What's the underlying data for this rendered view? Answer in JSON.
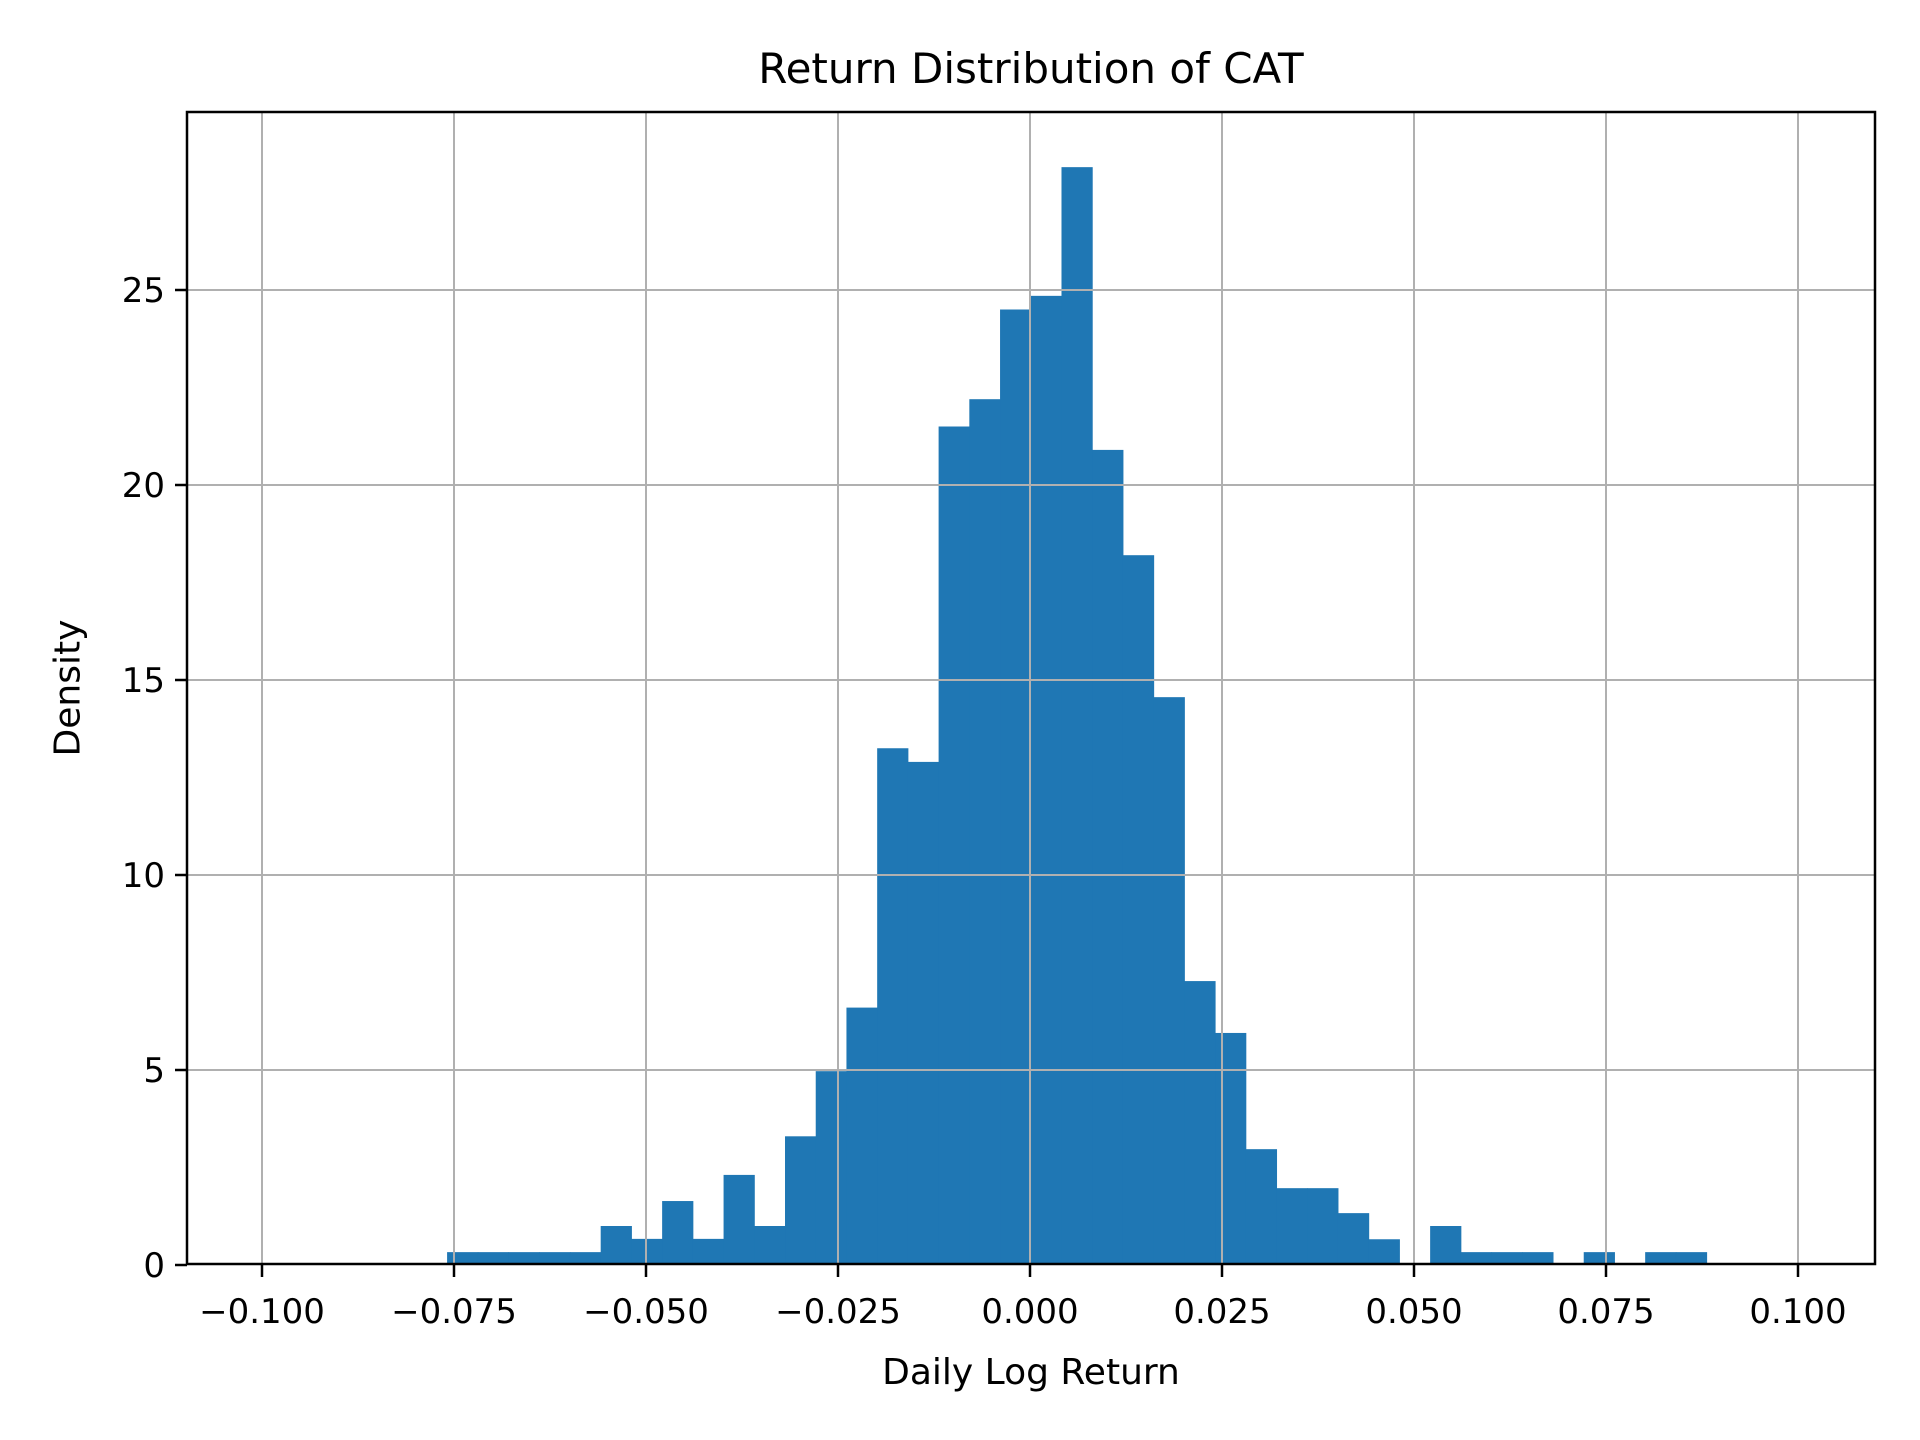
{
  "chart_data": {
    "type": "bar",
    "title": "Return Distribution of CAT",
    "xlabel": "Daily Log Return",
    "ylabel": "Density",
    "xlim": [
      -0.11,
      0.11
    ],
    "ylim": [
      0,
      29.6
    ],
    "grid": true,
    "bar_color": "#1f77b4",
    "grid_color": "#b0b0b0",
    "xticks": [
      -0.1,
      -0.075,
      -0.05,
      -0.025,
      0.0,
      0.025,
      0.05,
      0.075,
      0.1
    ],
    "xtick_labels": [
      "−0.100",
      "−0.075",
      "−0.050",
      "−0.025",
      "0.000",
      "0.025",
      "0.050",
      "0.075",
      "0.100"
    ],
    "yticks": [
      0,
      5,
      10,
      15,
      20,
      25
    ],
    "ytick_labels": [
      "0",
      "5",
      "10",
      "15",
      "20",
      "25"
    ],
    "bin_start": -0.0759,
    "bin_width": 0.004,
    "bin_edges_range": [
      -0.0759,
      0.088
    ],
    "values": [
      0.33,
      0.33,
      0.33,
      0.33,
      0.33,
      1.0,
      0.67,
      1.64,
      0.67,
      2.31,
      1.0,
      3.3,
      4.97,
      6.6,
      13.25,
      12.9,
      21.5,
      22.2,
      24.5,
      24.85,
      28.15,
      20.9,
      18.2,
      14.56,
      7.28,
      5.95,
      2.97,
      1.97,
      1.97,
      1.33,
      0.66,
      0.0,
      1.0,
      0.33,
      0.33,
      0.33,
      0.0,
      0.33,
      0.0,
      0.33,
      0.33
    ]
  }
}
